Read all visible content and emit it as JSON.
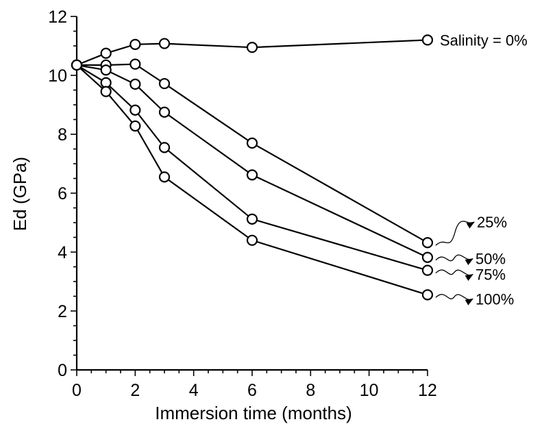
{
  "chart_data": {
    "type": "line",
    "xlabel": "Immersion time (months)",
    "ylabel": "Ed (GPa)",
    "xlim": [
      0,
      12
    ],
    "ylim": [
      0,
      12
    ],
    "x_ticks": [
      "0",
      "2",
      "4",
      "6",
      "8",
      "10",
      "12"
    ],
    "y_ticks": [
      "0",
      "2",
      "4",
      "6",
      "8",
      "10",
      "12"
    ],
    "grid": false,
    "marker": "open-circle",
    "series": [
      {
        "name": "Salinity = 0%",
        "x": [
          0,
          1,
          2,
          3,
          6,
          12
        ],
        "y": [
          10.35,
          10.75,
          11.05,
          11.08,
          10.95,
          11.2
        ]
      },
      {
        "name": "25%",
        "x": [
          0,
          1,
          2,
          3,
          6,
          12
        ],
        "y": [
          10.35,
          10.35,
          10.38,
          9.72,
          7.7,
          4.32
        ]
      },
      {
        "name": "50%",
        "x": [
          0,
          1,
          2,
          3,
          6,
          12
        ],
        "y": [
          10.35,
          10.18,
          9.7,
          8.75,
          6.62,
          3.82
        ]
      },
      {
        "name": "75%",
        "x": [
          0,
          1,
          2,
          3,
          6,
          12
        ],
        "y": [
          10.35,
          9.75,
          8.82,
          7.55,
          5.12,
          3.38
        ]
      },
      {
        "name": "100%",
        "x": [
          0,
          1,
          2,
          3,
          6,
          12
        ],
        "y": [
          10.35,
          9.45,
          8.28,
          6.55,
          4.4,
          2.55
        ]
      }
    ]
  }
}
